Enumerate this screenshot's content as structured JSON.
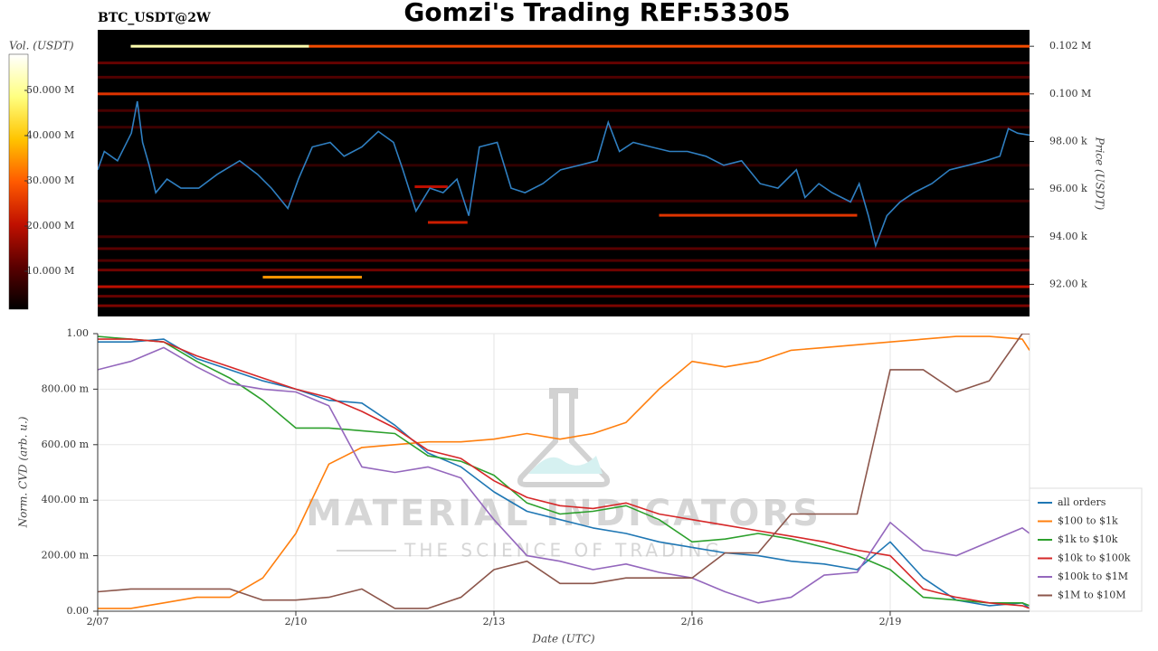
{
  "chart_data": [
    {
      "type": "heatmap",
      "title": "Gomzi's Trading REF:53305",
      "subtitle": "BTC_USDT@2W",
      "ylabel": "Price (USDT)",
      "color": "#2f7fc1",
      "xlim": [
        0,
        14.11
      ],
      "ylim": [
        90650,
        102690
      ],
      "yticks": [
        {
          "value": 92000,
          "label": "92.00 k"
        },
        {
          "value": 94000,
          "label": "94.00 k"
        },
        {
          "value": 96000,
          "label": "96.00 k"
        },
        {
          "value": 98000,
          "label": "98.00 k"
        },
        {
          "value": 100000,
          "label": "0.100 M"
        },
        {
          "value": 102000,
          "label": "0.102 M"
        }
      ],
      "x": [
        0,
        0.1,
        0.3,
        0.51,
        0.6,
        0.68,
        0.78,
        0.88,
        1.05,
        1.26,
        1.53,
        1.81,
        2.15,
        2.42,
        2.63,
        2.88,
        3.04,
        3.25,
        3.52,
        3.73,
        4.0,
        4.25,
        4.48,
        4.62,
        4.82,
        5.03,
        5.23,
        5.44,
        5.62,
        5.78,
        6.05,
        6.26,
        6.47,
        6.74,
        7.01,
        7.29,
        7.56,
        7.73,
        7.9,
        8.11,
        8.38,
        8.66,
        8.93,
        9.21,
        9.48,
        9.75,
        10.03,
        10.3,
        10.58,
        10.71,
        10.92,
        11.12,
        11.4,
        11.53,
        11.67,
        11.78,
        11.95,
        12.15,
        12.36,
        12.63,
        12.9,
        13.18,
        13.45,
        13.66,
        13.79,
        13.93,
        14.11
      ],
      "values": [
        96810,
        97580,
        97190,
        98350,
        99690,
        97960,
        97000,
        95850,
        96420,
        96040,
        96040,
        96620,
        97190,
        96620,
        96040,
        95190,
        96420,
        97770,
        97960,
        97380,
        97770,
        98420,
        97960,
        96810,
        95080,
        96040,
        95850,
        96420,
        94880,
        97770,
        97960,
        96040,
        95850,
        96230,
        96810,
        97000,
        97190,
        98810,
        97580,
        97960,
        97770,
        97580,
        97580,
        97380,
        97000,
        97190,
        96230,
        96040,
        96810,
        95650,
        96230,
        95850,
        95460,
        96230,
        94880,
        93620,
        94880,
        95460,
        95850,
        96230,
        96810,
        97000,
        97190,
        97380,
        98540,
        98350,
        98270
      ],
      "colorbar": {
        "label": "Vol. (USDT)",
        "lim": [
          1600000,
          58000000
        ],
        "ticks": [
          {
            "value": 10000000,
            "label": "10.000 M"
          },
          {
            "value": 20000000,
            "label": "20.000 M"
          },
          {
            "value": 30000000,
            "label": "30.000 M"
          },
          {
            "value": 40000000,
            "label": "40.000 M"
          },
          {
            "value": 50000000,
            "label": "50.000 M"
          }
        ],
        "colormap": [
          "#000000",
          "#5a0000",
          "#c01000",
          "#ff5a00",
          "#ffc400",
          "#ffff80",
          "#ffffff"
        ]
      },
      "cells": [
        {
          "price": 102000,
          "x0": 0.5,
          "x1": 3.2,
          "volume": 52000000
        },
        {
          "price": 102000,
          "x0": 3.2,
          "x1": 14.11,
          "volume": 28000000
        },
        {
          "price": 101300,
          "x0": 0,
          "x1": 14.11,
          "volume": 12000000
        },
        {
          "price": 100700,
          "x0": 0,
          "x1": 14.11,
          "volume": 10000000
        },
        {
          "price": 100000,
          "x0": 0,
          "x1": 14.11,
          "volume": 25000000
        },
        {
          "price": 99300,
          "x0": 0,
          "x1": 14.11,
          "volume": 9000000
        },
        {
          "price": 98600,
          "x0": 0,
          "x1": 14.11,
          "volume": 8000000
        },
        {
          "price": 97000,
          "x0": 0,
          "x1": 14.11,
          "volume": 7000000
        },
        {
          "price": 96100,
          "x0": 4.8,
          "x1": 5.3,
          "volume": 20000000
        },
        {
          "price": 95500,
          "x0": 0,
          "x1": 14.11,
          "volume": 8000000
        },
        {
          "price": 94900,
          "x0": 8.5,
          "x1": 11.5,
          "volume": 25000000
        },
        {
          "price": 94600,
          "x0": 5.0,
          "x1": 5.6,
          "volume": 22000000
        },
        {
          "price": 94000,
          "x0": 0,
          "x1": 14.11,
          "volume": 9000000
        },
        {
          "price": 93500,
          "x0": 0,
          "x1": 14.11,
          "volume": 11000000
        },
        {
          "price": 93000,
          "x0": 0,
          "x1": 14.11,
          "volume": 10000000
        },
        {
          "price": 92600,
          "x0": 0,
          "x1": 14.11,
          "volume": 13000000
        },
        {
          "price": 92300,
          "x0": 2.5,
          "x1": 4.0,
          "volume": 35000000
        },
        {
          "price": 91900,
          "x0": 0,
          "x1": 14.11,
          "volume": 20000000
        },
        {
          "price": 91500,
          "x0": 0,
          "x1": 14.11,
          "volume": 12000000
        },
        {
          "price": 91100,
          "x0": 0,
          "x1": 14.11,
          "volume": 14000000
        }
      ]
    },
    {
      "type": "line",
      "xlabel": "Date (UTC)",
      "ylabel": "Norm. CVD (arb. u.)",
      "grid": true,
      "legend": "lower right",
      "watermark": {
        "title": "MATERIAL INDICATORS",
        "subtitle": "THE SCIENCE OF TRADING"
      },
      "xlim": [
        0,
        14.11
      ],
      "ylim": [
        0,
        1
      ],
      "xticks": [
        {
          "value": 0,
          "label": "2/07"
        },
        {
          "value": 3,
          "label": "2/10"
        },
        {
          "value": 6,
          "label": "2/13"
        },
        {
          "value": 9,
          "label": "2/16"
        },
        {
          "value": 12,
          "label": "2/19"
        }
      ],
      "yticks": [
        {
          "value": 0,
          "label": "0.00"
        },
        {
          "value": 0.2,
          "label": "200.00 m"
        },
        {
          "value": 0.4,
          "label": "400.00 m"
        },
        {
          "value": 0.6,
          "label": "600.00 m"
        },
        {
          "value": 0.8,
          "label": "800.00 m"
        },
        {
          "value": 1,
          "label": "1.00"
        }
      ],
      "x": [
        0,
        0.5,
        1,
        1.5,
        2,
        2.5,
        3,
        3.5,
        4,
        4.5,
        5,
        5.5,
        6,
        6.5,
        7,
        7.5,
        8,
        8.5,
        9,
        9.5,
        10,
        10.5,
        11,
        11.5,
        12,
        12.5,
        13,
        13.5,
        14,
        14.11
      ],
      "series": [
        {
          "name": "all orders",
          "color": "#1f77b4",
          "values": [
            0.97,
            0.97,
            0.98,
            0.91,
            0.87,
            0.83,
            0.8,
            0.76,
            0.75,
            0.67,
            0.57,
            0.52,
            0.43,
            0.36,
            0.33,
            0.3,
            0.28,
            0.25,
            0.23,
            0.21,
            0.2,
            0.18,
            0.17,
            0.15,
            0.25,
            0.12,
            0.04,
            0.02,
            0.03,
            0.01
          ]
        },
        {
          "name": "$100 to $1k",
          "color": "#ff7f0e",
          "values": [
            0.01,
            0.01,
            0.03,
            0.05,
            0.05,
            0.12,
            0.28,
            0.53,
            0.59,
            0.6,
            0.61,
            0.61,
            0.62,
            0.64,
            0.62,
            0.64,
            0.68,
            0.8,
            0.9,
            0.88,
            0.9,
            0.94,
            0.95,
            0.96,
            0.97,
            0.98,
            0.99,
            0.99,
            0.98,
            0.94
          ]
        },
        {
          "name": "$1k to $10k",
          "color": "#2ca02c",
          "values": [
            0.99,
            0.98,
            0.97,
            0.9,
            0.84,
            0.76,
            0.66,
            0.66,
            0.65,
            0.64,
            0.56,
            0.54,
            0.49,
            0.39,
            0.35,
            0.36,
            0.38,
            0.33,
            0.25,
            0.26,
            0.28,
            0.26,
            0.23,
            0.2,
            0.15,
            0.05,
            0.04,
            0.03,
            0.03,
            0.02
          ]
        },
        {
          "name": "$10k to $100k",
          "color": "#d62728",
          "values": [
            0.98,
            0.98,
            0.97,
            0.92,
            0.88,
            0.84,
            0.8,
            0.77,
            0.72,
            0.66,
            0.58,
            0.55,
            0.47,
            0.41,
            0.38,
            0.37,
            0.39,
            0.35,
            0.33,
            0.31,
            0.29,
            0.27,
            0.25,
            0.22,
            0.2,
            0.08,
            0.05,
            0.03,
            0.02,
            0.01
          ]
        },
        {
          "name": "$100k to $1M",
          "color": "#9467bd",
          "values": [
            0.87,
            0.9,
            0.95,
            0.88,
            0.82,
            0.8,
            0.79,
            0.74,
            0.52,
            0.5,
            0.52,
            0.48,
            0.33,
            0.2,
            0.18,
            0.15,
            0.17,
            0.14,
            0.12,
            0.07,
            0.03,
            0.05,
            0.13,
            0.14,
            0.32,
            0.22,
            0.2,
            0.25,
            0.3,
            0.28
          ]
        },
        {
          "name": "$1M to $10M",
          "color": "#8c564b",
          "values": [
            0.07,
            0.08,
            0.08,
            0.08,
            0.08,
            0.04,
            0.04,
            0.05,
            0.08,
            0.01,
            0.01,
            0.05,
            0.15,
            0.18,
            0.1,
            0.1,
            0.12,
            0.12,
            0.12,
            0.21,
            0.21,
            0.35,
            0.35,
            0.35,
            0.87,
            0.87,
            0.79,
            0.83,
            1,
            1
          ]
        }
      ]
    }
  ]
}
